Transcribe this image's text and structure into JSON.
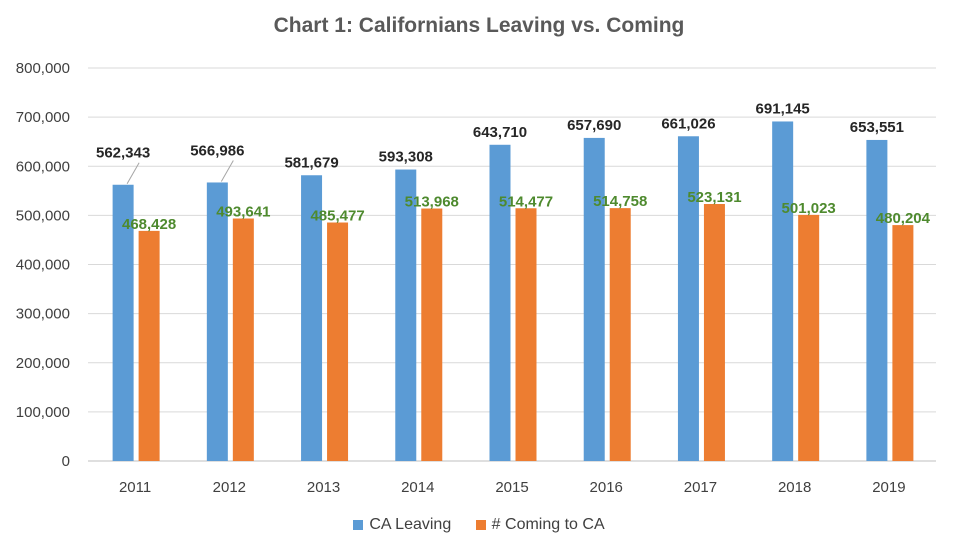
{
  "chart_data": {
    "type": "bar",
    "title": "Chart 1: Californians Leaving vs. Coming",
    "categories": [
      "2011",
      "2012",
      "2013",
      "2014",
      "2015",
      "2016",
      "2017",
      "2018",
      "2019"
    ],
    "series": [
      {
        "name": "CA Leaving",
        "color": "#5b9bd5",
        "values": [
          562343,
          566986,
          581679,
          593308,
          643710,
          657690,
          661026,
          691145,
          653551
        ],
        "labels": [
          "562,343",
          "566,986",
          "581,679",
          "593,308",
          "643,710",
          "657,690",
          "661,026",
          "691,145",
          "653,551"
        ]
      },
      {
        "name": "# Coming to CA",
        "color": "#ed7d31",
        "values": [
          468428,
          493641,
          485477,
          513968,
          514477,
          514758,
          523131,
          501023,
          480204
        ],
        "labels": [
          "468,428",
          "493,641",
          "485,477",
          "513,968",
          "514,477",
          "514,758",
          "523,131",
          "501,023",
          "480,204"
        ]
      }
    ],
    "ylim": [
      0,
      800000
    ],
    "yticks": [
      0,
      100000,
      200000,
      300000,
      400000,
      500000,
      600000,
      700000,
      800000
    ],
    "ytick_labels": [
      "0",
      "100,000",
      "200,000",
      "300,000",
      "400,000",
      "500,000",
      "600,000",
      "700,000",
      "800,000"
    ],
    "grid": true,
    "legend_position": "bottom",
    "label_colors": {
      "leaving": "#262626",
      "coming": "#4e8a2e"
    }
  }
}
